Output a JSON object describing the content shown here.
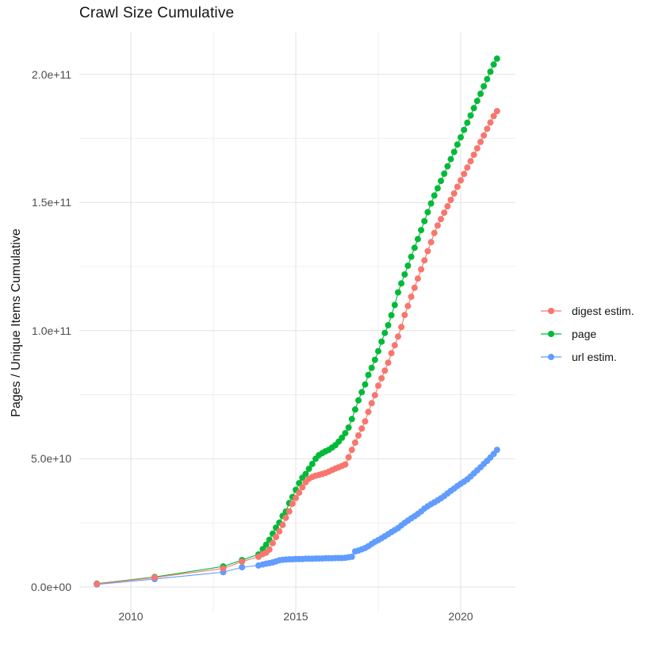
{
  "title": "Crawl Size Cumulative",
  "y_axis": {
    "label": "Pages / Unique Items Cumulative",
    "ticks": [
      {
        "label": "0.0e+00",
        "value_billions": 0
      },
      {
        "label": "5.0e+10",
        "value_billions": 50
      },
      {
        "label": "1.0e+11",
        "value_billions": 100
      },
      {
        "label": "1.5e+11",
        "value_billions": 150
      },
      {
        "label": "2.0e+11",
        "value_billions": 200
      }
    ],
    "minor_ticks_billions": [
      25,
      75,
      125,
      175
    ]
  },
  "x_axis": {
    "ticks": [
      {
        "label": "2010",
        "year": 2010
      },
      {
        "label": "2015",
        "year": 2015
      },
      {
        "label": "2020",
        "year": 2020
      }
    ],
    "minor_tick_years": [
      2012.5,
      2017.5
    ]
  },
  "legend": {
    "position": "right",
    "items": [
      "digest estim.",
      "page",
      "url estim."
    ]
  },
  "chart_data": {
    "type": "scatter",
    "title": "Crawl Size Cumulative",
    "xlabel": "",
    "ylabel": "Pages / Unique Items Cumulative",
    "x_unit": "decimal_year",
    "y_unit": "pages (values given in billions, 1e9)",
    "xlim": [
      2008.4,
      2021.7
    ],
    "ylim_billions": [
      0,
      216
    ],
    "grid": true,
    "legend_position": "right",
    "marker": "filled-circle-with-line",
    "x": [
      2008.97,
      2010.72,
      2012.8,
      2013.37,
      2013.87,
      2014.0,
      2014.1,
      2014.2,
      2014.3,
      2014.4,
      2014.5,
      2014.6,
      2014.7,
      2014.8,
      2014.9,
      2015.0,
      2015.1,
      2015.2,
      2015.3,
      2015.4,
      2015.5,
      2015.6,
      2015.7,
      2015.8,
      2015.9,
      2016.0,
      2016.1,
      2016.2,
      2016.3,
      2016.4,
      2016.5,
      2016.6,
      2016.7,
      2016.8,
      2016.9,
      2017.0,
      2017.1,
      2017.2,
      2017.3,
      2017.4,
      2017.5,
      2017.6,
      2017.7,
      2017.8,
      2017.9,
      2018.0,
      2018.1,
      2018.2,
      2018.3,
      2018.4,
      2018.5,
      2018.6,
      2018.7,
      2018.8,
      2018.9,
      2019.0,
      2019.1,
      2019.2,
      2019.3,
      2019.4,
      2019.5,
      2019.6,
      2019.7,
      2019.8,
      2019.9,
      2020.0,
      2020.1,
      2020.2,
      2020.3,
      2020.4,
      2020.5,
      2020.6,
      2020.7,
      2020.8,
      2020.9,
      2021.0,
      2021.1
    ],
    "series": [
      {
        "name": "digest estim.",
        "color": "#F8766D",
        "values_billions": [
          1.2,
          3.7,
          7.2,
          9.9,
          11.8,
          12.8,
          13.4,
          14.6,
          17.1,
          19.5,
          21.7,
          24.2,
          27.0,
          29.5,
          32.5,
          34.7,
          36.8,
          38.9,
          40.9,
          42.2,
          42.9,
          43.4,
          43.7,
          44.1,
          44.5,
          45.0,
          45.6,
          46.2,
          46.7,
          47.2,
          47.8,
          50.6,
          53.5,
          56.3,
          59.1,
          61.8,
          64.6,
          68.3,
          71.7,
          74.8,
          78.5,
          81.4,
          84.4,
          87.5,
          91.2,
          94.3,
          97.7,
          101.4,
          106.1,
          109.6,
          113.2,
          116.7,
          120.3,
          123.9,
          127.4,
          131.0,
          134.5,
          138.1,
          141.0,
          143.5,
          146.0,
          148.5,
          151.0,
          153.5,
          156.1,
          158.6,
          161.1,
          163.6,
          166.1,
          168.6,
          171.1,
          173.6,
          176.1,
          178.7,
          181.2,
          183.7,
          185.6
        ]
      },
      {
        "name": "page",
        "color": "#00BA38",
        "values_billions": [
          1.3,
          3.9,
          8.0,
          10.5,
          12.7,
          14.8,
          16.5,
          18.4,
          20.8,
          23.1,
          25.1,
          27.7,
          29.4,
          32.7,
          35.1,
          37.9,
          40.5,
          42.6,
          44.1,
          46.1,
          48.0,
          50.0,
          51.4,
          52.2,
          52.9,
          53.5,
          54.4,
          55.3,
          56.7,
          58.2,
          60.0,
          62.2,
          65.5,
          69.2,
          72.8,
          76.0,
          79.0,
          82.7,
          85.5,
          88.6,
          92.0,
          95.7,
          99.1,
          102.1,
          106.0,
          110.0,
          114.9,
          118.4,
          121.9,
          125.3,
          128.8,
          132.3,
          135.7,
          139.2,
          142.7,
          146.2,
          149.6,
          152.7,
          155.5,
          158.4,
          161.2,
          164.1,
          166.9,
          169.7,
          172.6,
          175.4,
          178.3,
          181.1,
          183.9,
          186.8,
          189.6,
          192.4,
          195.3,
          198.1,
          201.0,
          203.8,
          206.1
        ]
      },
      {
        "name": "url estim.",
        "color": "#619CFF",
        "values_billions": [
          1.0,
          3.1,
          5.8,
          7.7,
          8.4,
          8.8,
          9.1,
          9.3,
          9.6,
          10.0,
          10.4,
          10.6,
          10.7,
          10.8,
          10.8,
          10.9,
          10.9,
          10.9,
          11.0,
          11.0,
          11.0,
          11.1,
          11.1,
          11.1,
          11.2,
          11.2,
          11.2,
          11.3,
          11.3,
          11.3,
          11.4,
          11.6,
          11.8,
          13.9,
          14.2,
          14.7,
          15.2,
          15.9,
          16.8,
          17.6,
          18.3,
          19.0,
          19.8,
          20.6,
          21.4,
          22.2,
          23.0,
          24.0,
          25.0,
          25.9,
          26.8,
          27.6,
          28.5,
          29.5,
          30.6,
          31.5,
          32.3,
          33.0,
          33.8,
          34.6,
          35.5,
          36.5,
          37.5,
          38.4,
          39.4,
          40.3,
          41.1,
          42.0,
          43.1,
          44.3,
          45.5,
          46.7,
          48.0,
          49.2,
          50.5,
          51.9,
          53.5
        ]
      }
    ]
  },
  "style_colors": {
    "major_grid": "#e2e2e2",
    "minor_grid": "#efefef",
    "tick_text": "#4d4d4d"
  }
}
